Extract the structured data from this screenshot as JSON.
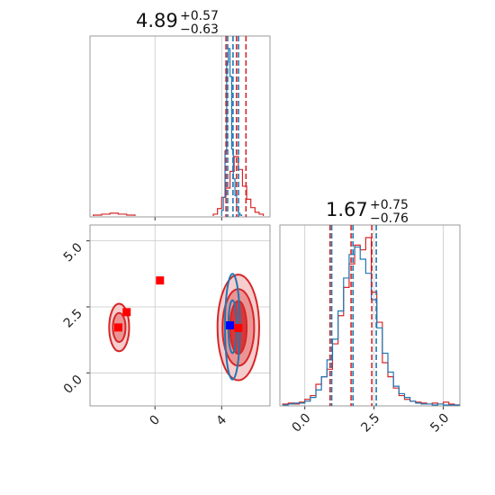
{
  "chart_data": [
    {
      "type": "histogram",
      "panel": "top-left",
      "title": {
        "value": "4.89",
        "plus": "+0.57",
        "minus": "−0.63"
      },
      "x_range": [
        -3.9,
        6.9
      ],
      "x_ticks": [
        0,
        4
      ],
      "grid": true,
      "quantile_lines": {
        "red": [
          4.26,
          4.89,
          5.46
        ],
        "blue": [
          4.36,
          4.68,
          5.01
        ]
      },
      "series": [
        {
          "color": "#d62728",
          "bins": [
            -3.7,
            -3.2,
            -2.7,
            -2.2,
            -1.7,
            -1.2,
            3.5,
            3.75,
            4.0,
            4.25,
            4.5,
            4.75,
            5.0,
            5.25,
            5.5,
            5.75,
            6.0,
            6.25,
            6.5
          ],
          "counts": [
            1,
            2,
            3,
            2,
            1,
            0,
            2,
            8,
            20,
            30,
            48,
            64,
            50,
            32,
            18,
            9,
            4,
            2,
            0
          ]
        },
        {
          "color": "#1f77b4",
          "bins": [
            4.0,
            4.1,
            4.2,
            4.3,
            4.4,
            4.5,
            4.6,
            4.7,
            4.8,
            4.9,
            5.0,
            5.1,
            5.2
          ],
          "counts": [
            6,
            20,
            70,
            165,
            180,
            150,
            72,
            40,
            22,
            10,
            3,
            1,
            0
          ]
        }
      ]
    },
    {
      "type": "histogram",
      "panel": "bottom-right",
      "title": {
        "value": "1.67",
        "plus": "+0.75",
        "minus": "−0.76"
      },
      "x_range": [
        -0.9,
        5.6
      ],
      "x_ticks": [
        "0.0",
        "2.5",
        "5.0"
      ],
      "grid": true,
      "quantile_lines": {
        "red": [
          0.91,
          1.67,
          2.42
        ],
        "blue": [
          0.97,
          1.74,
          2.58
        ]
      },
      "series": [
        {
          "color": "#d62728",
          "x": [
            -0.8,
            -0.6,
            -0.4,
            -0.2,
            0.0,
            0.2,
            0.4,
            0.6,
            0.8,
            1.0,
            1.2,
            1.4,
            1.6,
            1.8,
            2.0,
            2.2,
            2.4,
            2.6,
            2.8,
            3.0,
            3.2,
            3.4,
            3.6,
            3.8,
            4.0,
            4.2,
            4.4,
            4.6,
            4.8,
            5.0,
            5.2,
            5.4
          ],
          "counts": [
            1,
            2,
            1,
            3,
            6,
            10,
            22,
            30,
            38,
            65,
            95,
            125,
            150,
            170,
            165,
            178,
            120,
            88,
            45,
            30,
            18,
            10,
            6,
            4,
            3,
            2,
            1,
            2,
            1,
            3,
            1,
            0
          ]
        },
        {
          "color": "#1f77b4",
          "x": [
            -0.8,
            -0.6,
            -0.4,
            -0.2,
            0.0,
            0.2,
            0.4,
            0.6,
            0.8,
            1.0,
            1.2,
            1.4,
            1.6,
            1.8,
            2.0,
            2.2,
            2.4,
            2.6,
            2.8,
            3.0,
            3.2,
            3.4,
            3.6,
            3.8,
            4.0,
            4.2,
            4.4,
            4.6,
            4.8,
            5.0,
            5.2,
            5.4
          ],
          "counts": [
            0,
            1,
            2,
            2,
            4,
            8,
            16,
            30,
            48,
            70,
            100,
            135,
            160,
            168,
            155,
            140,
            112,
            82,
            55,
            35,
            20,
            12,
            8,
            4,
            2,
            1,
            1,
            0,
            1,
            0,
            0,
            0
          ]
        }
      ]
    },
    {
      "type": "contour",
      "panel": "bottom-left",
      "x_range": [
        -3.9,
        6.9
      ],
      "y_range": [
        -1.25,
        5.6
      ],
      "x_ticks": [
        "0",
        "4"
      ],
      "y_ticks": [
        "0.0",
        "2.5",
        "5.0"
      ],
      "grid": true,
      "markers": [
        {
          "x": -2.2,
          "y": 1.72,
          "color": "#ff0000"
        },
        {
          "x": -1.7,
          "y": 2.3,
          "color": "#ff0000"
        },
        {
          "x": 0.3,
          "y": 3.5,
          "color": "#ff0000"
        },
        {
          "x": 5.0,
          "y": 1.7,
          "color": "#ff0000"
        },
        {
          "x": 4.5,
          "y": 1.8,
          "color": "#0000ff"
        }
      ],
      "regions": [
        {
          "color": "#d62728",
          "cx": 5.0,
          "cy": 1.72,
          "levels": [
            [
              1.25,
              2.0
            ],
            [
              0.95,
              1.45
            ],
            [
              0.5,
              1.0
            ]
          ]
        },
        {
          "color": "#d62728",
          "cx": -2.15,
          "cy": 1.72,
          "levels": [
            [
              0.6,
              0.9
            ],
            [
              0.38,
              0.55
            ]
          ]
        },
        {
          "color": "#1f77b4",
          "cx": 4.65,
          "cy": 1.75,
          "levels": [
            [
              0.45,
              2.0
            ],
            [
              0.25,
              1.0
            ]
          ]
        }
      ]
    }
  ]
}
